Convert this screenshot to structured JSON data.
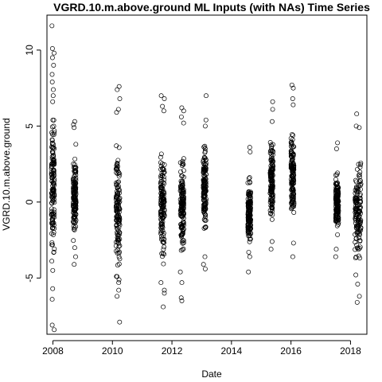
{
  "chart_data": {
    "type": "scatter",
    "title": "VGRD.10.m.above.ground ML Inputs (with NAs) Time Series",
    "xlabel": "Date",
    "ylabel": "VGRD.10.m.above.ground",
    "xlim": [
      2007.8,
      2018.55
    ],
    "ylim": [
      -8.7,
      12.3
    ],
    "x_ticks": [
      2008,
      2010,
      2012,
      2014,
      2016,
      2018
    ],
    "x_tick_labels": [
      "2008",
      "2010",
      "2012",
      "2014",
      "2016",
      "2018"
    ],
    "y_ticks": [
      -5,
      0,
      5,
      10
    ],
    "y_tick_labels": [
      "-5",
      "0",
      "5",
      "10"
    ],
    "marker": "open-circle",
    "grid": false,
    "clusters": [
      {
        "x_start": 2007.95,
        "x_end": 2008.05,
        "y_min": -8.4,
        "y_max": 11.6,
        "extremes": [
          11.6,
          10.1,
          9.8,
          9.5,
          9.0,
          8.4,
          7.9,
          7.4,
          7.0,
          6.6,
          -4.5,
          -5.7,
          -6.4,
          -8.1,
          -8.4
        ]
      },
      {
        "x_start": 2008.68,
        "x_end": 2008.78,
        "y_min": -4.1,
        "y_max": 5.3,
        "extremes": [
          5.3,
          5.1,
          4.9,
          3.8,
          -3.0,
          -3.6,
          -4.1
        ]
      },
      {
        "x_start": 2010.12,
        "x_end": 2010.25,
        "y_min": -7.9,
        "y_max": 7.6,
        "extremes": [
          7.6,
          7.4,
          6.8,
          6.1,
          5.9,
          -5.3,
          -5.8,
          -6.2,
          -7.9
        ]
      },
      {
        "x_start": 2011.62,
        "x_end": 2011.75,
        "y_min": -6.9,
        "y_max": 7.0,
        "extremes": [
          7.0,
          6.8,
          6.3,
          6.0,
          -5.3,
          -5.8,
          -6.0,
          -6.9
        ]
      },
      {
        "x_start": 2012.28,
        "x_end": 2012.4,
        "y_min": -6.5,
        "y_max": 6.2,
        "extremes": [
          6.2,
          6.0,
          5.6,
          5.2,
          -4.6,
          -5.3,
          -6.3,
          -6.5
        ]
      },
      {
        "x_start": 2013.05,
        "x_end": 2013.15,
        "y_min": -4.4,
        "y_max": 7.0,
        "extremes": [
          7.0,
          5.4,
          5.0,
          -3.6,
          -4.1,
          -4.4
        ]
      },
      {
        "x_start": 2014.55,
        "x_end": 2014.65,
        "y_min": -4.6,
        "y_max": 3.6,
        "extremes": [
          3.6,
          3.3,
          -3.3,
          -3.6,
          -4.6
        ]
      },
      {
        "x_start": 2015.3,
        "x_end": 2015.4,
        "y_min": -3.1,
        "y_max": 6.6,
        "extremes": [
          6.6,
          6.1,
          5.3,
          -2.6,
          -3.1
        ]
      },
      {
        "x_start": 2016.0,
        "x_end": 2016.1,
        "y_min": -3.6,
        "y_max": 7.7,
        "extremes": [
          7.7,
          7.5,
          6.8,
          6.4,
          -2.7,
          -3.6
        ]
      },
      {
        "x_start": 2017.5,
        "x_end": 2017.6,
        "y_min": -3.6,
        "y_max": 3.9,
        "extremes": [
          3.9,
          3.5,
          -3.1,
          -3.6
        ]
      },
      {
        "x_start": 2018.15,
        "x_end": 2018.35,
        "y_min": -6.6,
        "y_max": 5.8,
        "extremes": [
          5.8,
          5.0,
          4.9,
          -4.8,
          -5.4,
          -6.2,
          -6.6
        ]
      }
    ]
  }
}
